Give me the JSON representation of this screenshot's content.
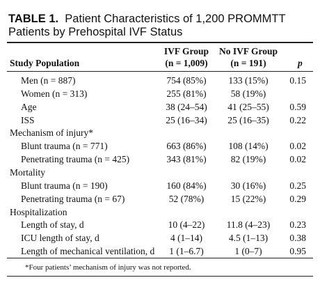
{
  "header": {
    "label": "TABLE 1.",
    "title": "Patient Characteristics of 1,200 PROMMTT Patients by Prehospital IVF Status"
  },
  "table": {
    "columns": {
      "label": "Study Population",
      "ivf": [
        "IVF Group",
        "(n = 1,009)"
      ],
      "no_ivf": [
        "No IVF Group",
        "(n = 191)"
      ],
      "p": "p"
    },
    "sections": [
      {
        "rows": [
          {
            "label": "Men (n = 887)",
            "ivf": "754 (85%)",
            "no_ivf": "133 (15%)",
            "p": "0.15"
          },
          {
            "label": "Women (n = 313)",
            "ivf": "255 (81%)",
            "no_ivf": "58 (19%)"
          },
          {
            "label": "Age",
            "ivf": "38 (24–54)",
            "no_ivf": "41 (25–55)",
            "p": "0.59"
          },
          {
            "label": "ISS",
            "ivf": "25 (16–34)",
            "no_ivf": "25 (16–35)",
            "p": "0.22"
          }
        ]
      },
      {
        "label": "Mechanism of injury*",
        "rows": [
          {
            "label": "Blunt trauma (n = 771)",
            "ivf": "663 (86%)",
            "no_ivf": "108 (14%)",
            "p": "0.02"
          },
          {
            "label": "Penetrating trauma (n = 425)",
            "ivf": "343 (81%)",
            "no_ivf": "82 (19%)",
            "p": "0.02"
          }
        ]
      },
      {
        "label": "Mortality",
        "rows": [
          {
            "label": "Blunt trauma (n = 190)",
            "ivf": "160 (84%)",
            "no_ivf": "30 (16%)",
            "p": "0.25"
          },
          {
            "label": "Penetrating trauma (n = 67)",
            "ivf": "52 (78%)",
            "no_ivf": "15 (22%)",
            "p": "0.29"
          }
        ]
      },
      {
        "label": "Hospitalization",
        "rows": [
          {
            "label": "Length of stay, d",
            "ivf": "10 (4–22)",
            "no_ivf": "11.8 (4–23)",
            "p": "0.23"
          },
          {
            "label": "ICU length of stay, d",
            "ivf": "4 (1–14)",
            "no_ivf": "4.5 (1–13)",
            "p": "0.38"
          },
          {
            "label": "Length of mechanical ventilation, d",
            "ivf": "1 (1–6.7)",
            "no_ivf": "1 (0–7)",
            "p": "0.95"
          }
        ]
      }
    ],
    "footnote": "*Four patients’ mechanism of injury was not reported."
  }
}
